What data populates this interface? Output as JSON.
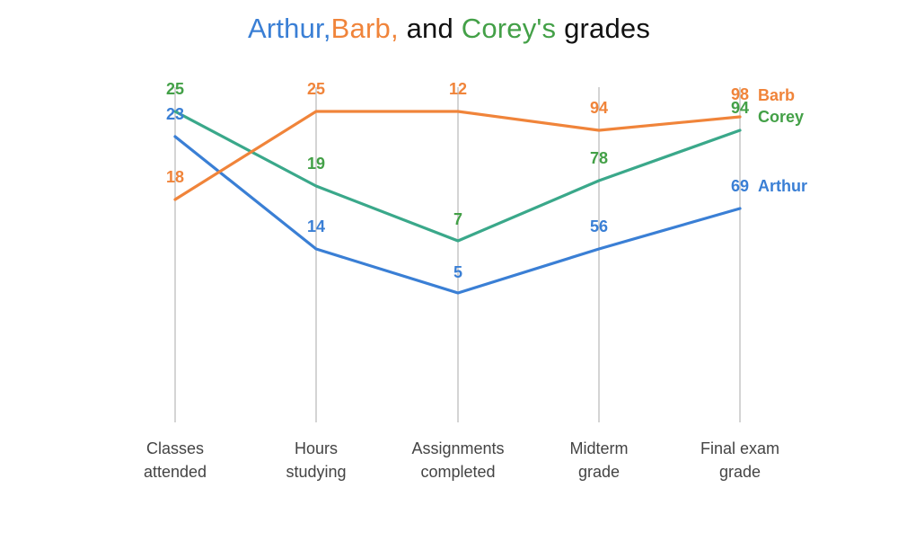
{
  "title": {
    "arthur": "Arthur,",
    "barb": "Barb,",
    "and": " and ",
    "corey": "Corey's",
    "grades": " grades"
  },
  "chart_data": {
    "type": "line",
    "subtype": "parallel-coordinates",
    "title": "Arthur, Barb, and Corey's grades",
    "categories": [
      [
        "Classes",
        "attended"
      ],
      [
        "Hours",
        "studying"
      ],
      [
        "Assignments",
        "completed"
      ],
      [
        "Midterm",
        "grade"
      ],
      [
        "Final exam",
        "grade"
      ]
    ],
    "series": [
      {
        "name": "Arthur",
        "color": "#3a7fd5",
        "values": [
          23,
          14,
          5,
          56,
          69
        ]
      },
      {
        "name": "Barb",
        "color": "#f0843a",
        "values": [
          18,
          25,
          12,
          94,
          98
        ]
      },
      {
        "name": "Corey",
        "color": "#43a047",
        "line_color": "#3aa88a",
        "values": [
          25,
          19,
          7,
          78,
          94
        ]
      }
    ],
    "grid": false,
    "legend": "direct labels at right end of lines"
  }
}
